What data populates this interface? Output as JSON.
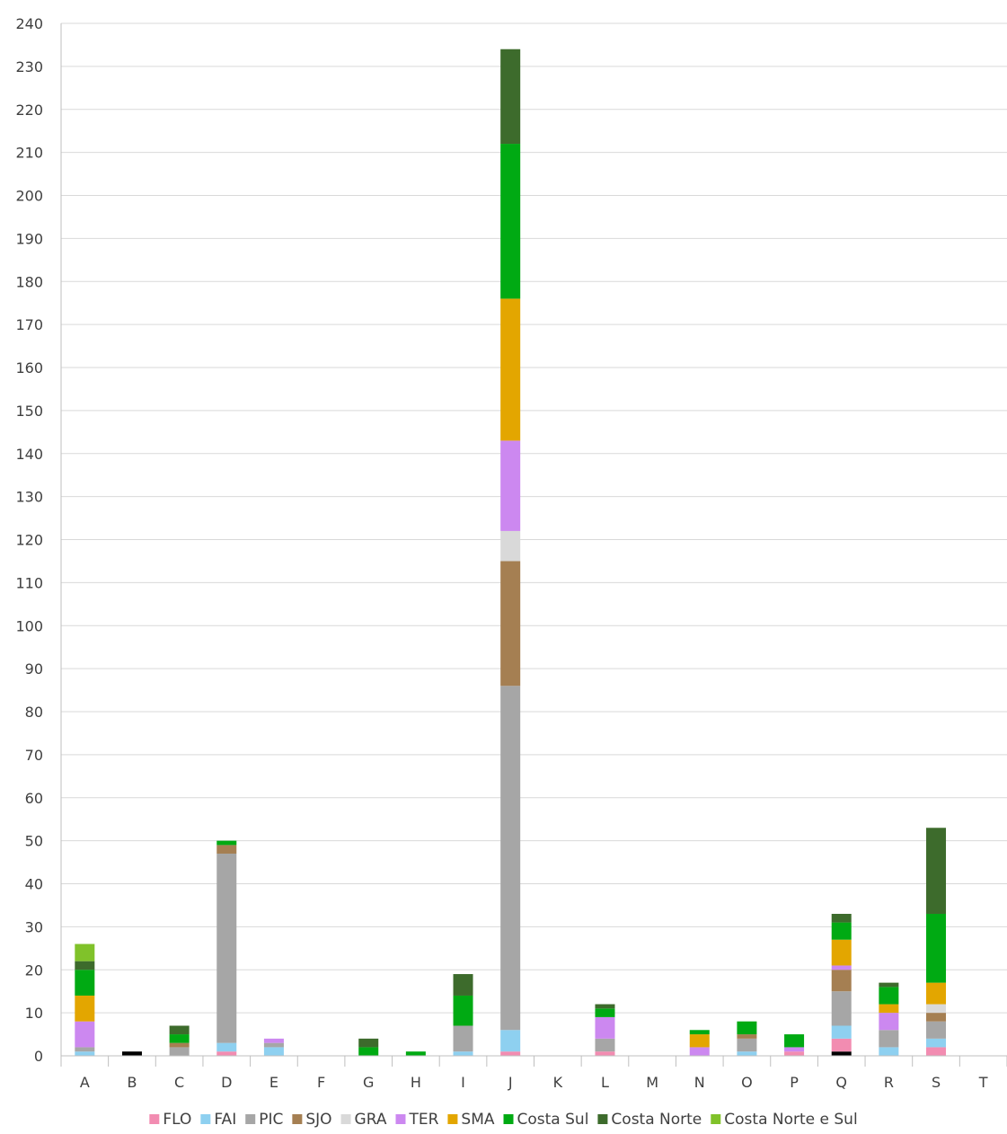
{
  "chart_data": {
    "type": "bar",
    "stacked": true,
    "categories": [
      "A",
      "B",
      "C",
      "D",
      "E",
      "F",
      "G",
      "H",
      "I",
      "J",
      "K",
      "L",
      "M",
      "N",
      "O",
      "P",
      "Q",
      "R",
      "S",
      "T"
    ],
    "ylim": [
      0,
      240
    ],
    "yticks": [
      0,
      10,
      20,
      30,
      40,
      50,
      60,
      70,
      80,
      90,
      100,
      110,
      120,
      130,
      140,
      150,
      160,
      170,
      180,
      190,
      200,
      210,
      220,
      230,
      240
    ],
    "grid": true,
    "legend_position": "bottom",
    "title": "",
    "xlabel": "",
    "ylabel": "",
    "series": [
      {
        "name": "",
        "color": "#000000",
        "in_legend": false,
        "values": [
          0,
          1,
          0,
          0,
          0,
          0,
          0,
          0,
          0,
          0,
          0,
          0,
          0,
          0,
          0,
          0,
          1,
          0,
          0,
          0
        ]
      },
      {
        "name": "FLO",
        "color": "#f28cb1",
        "values": [
          0,
          0,
          0,
          1,
          0,
          0,
          0,
          0,
          0,
          1,
          0,
          1,
          0,
          0,
          0,
          1,
          3,
          0,
          2,
          0
        ]
      },
      {
        "name": "FAI",
        "color": "#8ed0f0",
        "values": [
          1,
          0,
          0,
          2,
          2,
          0,
          0,
          0,
          1,
          5,
          0,
          0,
          0,
          0,
          1,
          0,
          3,
          2,
          2,
          0
        ]
      },
      {
        "name": "PIC",
        "color": "#a6a6a6",
        "values": [
          1,
          0,
          2,
          44,
          1,
          0,
          0,
          0,
          6,
          80,
          0,
          3,
          0,
          0,
          3,
          0,
          8,
          4,
          4,
          0
        ]
      },
      {
        "name": "SJO",
        "color": "#a57f52",
        "values": [
          0,
          0,
          1,
          2,
          0,
          0,
          0,
          0,
          0,
          29,
          0,
          0,
          0,
          0,
          1,
          0,
          5,
          0,
          2,
          0
        ]
      },
      {
        "name": "GRA",
        "color": "#d9d9d9",
        "values": [
          0,
          0,
          0,
          0,
          0,
          0,
          0,
          0,
          0,
          7,
          0,
          0,
          0,
          0,
          0,
          0,
          0,
          0,
          2,
          0
        ]
      },
      {
        "name": "TER",
        "color": "#cc88f0",
        "values": [
          6,
          0,
          0,
          0,
          1,
          0,
          0,
          0,
          0,
          21,
          0,
          5,
          0,
          2,
          0,
          1,
          1,
          4,
          0,
          0
        ]
      },
      {
        "name": "SMA",
        "color": "#e3a600",
        "values": [
          6,
          0,
          0,
          0,
          0,
          0,
          0,
          0,
          0,
          33,
          0,
          0,
          0,
          3,
          0,
          0,
          6,
          2,
          5,
          0
        ]
      },
      {
        "name": "Costa Sul",
        "color": "#00aa13",
        "values": [
          6,
          0,
          2,
          1,
          0,
          0,
          2,
          1,
          7,
          36,
          0,
          2,
          0,
          1,
          3,
          3,
          4,
          4,
          16,
          0
        ]
      },
      {
        "name": "Costa Norte",
        "color": "#3d6b2c",
        "values": [
          2,
          0,
          2,
          0,
          0,
          0,
          2,
          0,
          5,
          22,
          0,
          1,
          0,
          0,
          0,
          0,
          2,
          1,
          20,
          0
        ]
      },
      {
        "name": "Costa Norte e Sul",
        "color": "#80c22a",
        "values": [
          4,
          0,
          0,
          0,
          0,
          0,
          0,
          0,
          0,
          0,
          0,
          0,
          0,
          0,
          0,
          0,
          0,
          0,
          0,
          0
        ]
      }
    ]
  }
}
